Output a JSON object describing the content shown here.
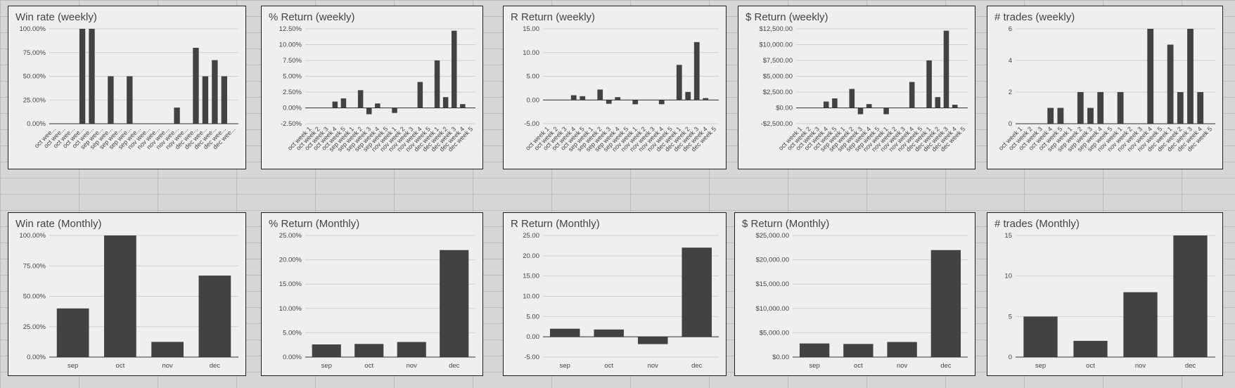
{
  "chart_data": [
    {
      "type": "bar",
      "title": "Win rate (weekly)",
      "color": "#424242",
      "grid": true,
      "categories": [
        "oct wee...",
        "oct wee...",
        "oct wee...",
        "oct wee...",
        "oct wee...",
        "sep wee...",
        "sep wee...",
        "sep wee...",
        "sep wee...",
        "sep wee...",
        "nov wee...",
        "nov wee...",
        "nov wee...",
        "nov wee...",
        "nov wee...",
        "dec wee...",
        "dec wee...",
        "dec wee...",
        "dec wee...",
        "dec wee..."
      ],
      "values": [
        0,
        0,
        0,
        100,
        100,
        0,
        50,
        0,
        50,
        0,
        0,
        0,
        0,
        17,
        0,
        80,
        50,
        67,
        50,
        0
      ],
      "ylim": [
        0,
        100
      ],
      "yticks": [
        {
          "value": 0,
          "label": "0.00%"
        },
        {
          "value": 25,
          "label": "25.00%"
        },
        {
          "value": 50,
          "label": "50.00%"
        },
        {
          "value": 75,
          "label": "75.00%"
        },
        {
          "value": 100,
          "label": "100.00%"
        }
      ]
    },
    {
      "type": "bar",
      "title": "% Return (weekly)",
      "color": "#424242",
      "grid": true,
      "categories": [
        "oct week 1",
        "oct week 2",
        "oct week 3",
        "oct week 4",
        "oct week 5",
        "sep week 1",
        "sep week 2",
        "sep week 3",
        "sep week 4",
        "sep week 5",
        "nov week 1",
        "nov week 2",
        "nov week 3",
        "nov week 4",
        "nov week 5",
        "dec week 1",
        "dec week 2",
        "dec week 3",
        "dec week 4",
        "dec week 5"
      ],
      "values": [
        0,
        0,
        0,
        1.0,
        1.5,
        0,
        2.8,
        -1.0,
        0.7,
        0,
        -0.8,
        0,
        0,
        4.1,
        0,
        7.5,
        1.7,
        12.2,
        0.6,
        0
      ],
      "ylim": [
        -2.5,
        12.5
      ],
      "yticks": [
        {
          "value": -2.5,
          "label": "-2.50%"
        },
        {
          "value": 0,
          "label": "0.00%"
        },
        {
          "value": 2.5,
          "label": "2.50%"
        },
        {
          "value": 5,
          "label": "5.00%"
        },
        {
          "value": 7.5,
          "label": "7.50%"
        },
        {
          "value": 10,
          "label": "10.00%"
        },
        {
          "value": 12.5,
          "label": "12.50%"
        }
      ]
    },
    {
      "type": "bar",
      "title": "R Return (weekly)",
      "color": "#424242",
      "grid": true,
      "categories": [
        "oct week 1",
        "oct week 2",
        "oct week 3",
        "oct week 4",
        "oct week 5",
        "sep week 1",
        "sep week 2",
        "sep week 3",
        "sep week 4",
        "sep week 5",
        "nov week 1",
        "nov week 2",
        "nov week 3",
        "nov week 4",
        "nov week 5",
        "dec week 1",
        "dec week 2",
        "dec week 3",
        "dec week 4",
        "dec week 5"
      ],
      "values": [
        0,
        0,
        0,
        1.0,
        0.8,
        0,
        2.2,
        -0.8,
        0.6,
        0,
        -0.9,
        0,
        0,
        -0.9,
        0,
        7.4,
        1.7,
        12.2,
        0.4,
        0
      ],
      "ylim": [
        -5,
        15
      ],
      "yticks": [
        {
          "value": -5,
          "label": "-5.00"
        },
        {
          "value": 0,
          "label": "0.00"
        },
        {
          "value": 5,
          "label": "5.00"
        },
        {
          "value": 10,
          "label": "10.00"
        },
        {
          "value": 15,
          "label": "15.00"
        }
      ]
    },
    {
      "type": "bar",
      "title": "$ Return (weekly)",
      "color": "#424242",
      "grid": true,
      "categories": [
        "oct week 1",
        "oct week 2",
        "oct week 3",
        "oct week 4",
        "oct week 5",
        "sep week 1",
        "sep week 2",
        "sep week 3",
        "sep week 4",
        "sep week 5",
        "nov week 1",
        "nov week 2",
        "nov week 3",
        "nov week 4",
        "nov week 5",
        "dec week 1",
        "dec week 2",
        "dec week 3",
        "dec week 4",
        "dec week 5"
      ],
      "values": [
        0,
        0,
        0,
        1000,
        1500,
        0,
        3000,
        -1000,
        600,
        0,
        -1000,
        0,
        0,
        4100,
        0,
        7500,
        1700,
        12200,
        500,
        0
      ],
      "ylim": [
        -2500,
        12500
      ],
      "yticks": [
        {
          "value": -2500,
          "label": "-$2,500.00"
        },
        {
          "value": 0,
          "label": "$0.00"
        },
        {
          "value": 2500,
          "label": "$2,500.00"
        },
        {
          "value": 5000,
          "label": "$5,000.00"
        },
        {
          "value": 7500,
          "label": "$7,500.00"
        },
        {
          "value": 10000,
          "label": "$10,000.00"
        },
        {
          "value": 12500,
          "label": "$12,500.00"
        }
      ]
    },
    {
      "type": "bar",
      "title": "# trades (weekly)",
      "color": "#424242",
      "grid": true,
      "categories": [
        "oct week 1",
        "oct week 2",
        "oct week 3",
        "oct week 4",
        "oct week 5",
        "sep week 1",
        "sep week 2",
        "sep week 3",
        "sep week 4",
        "sep week 5",
        "nov week 1",
        "nov week 2",
        "nov week 3",
        "nov week 4",
        "nov week 5",
        "dec week 1",
        "dec week 2",
        "dec week 3",
        "dec week 4",
        "dec week 5"
      ],
      "values": [
        0,
        0,
        0,
        1,
        1,
        0,
        2,
        1,
        2,
        0,
        2,
        0,
        0,
        6,
        0,
        5,
        2,
        6,
        2,
        0
      ],
      "ylim": [
        0,
        6
      ],
      "yticks": [
        0,
        2,
        4,
        6
      ]
    },
    {
      "type": "bar",
      "title": "Win rate (Monthly)",
      "color": "#424242",
      "grid": true,
      "categories": [
        "sep",
        "oct",
        "nov",
        "dec"
      ],
      "values": [
        40,
        100,
        12.5,
        67
      ],
      "ylim": [
        0,
        100
      ],
      "yticks": [
        {
          "value": 0,
          "label": "0.00%"
        },
        {
          "value": 25,
          "label": "25.00%"
        },
        {
          "value": 50,
          "label": "50.00%"
        },
        {
          "value": 75,
          "label": "75.00%"
        },
        {
          "value": 100,
          "label": "100.00%"
        }
      ]
    },
    {
      "type": "bar",
      "title": "% Return (Monthly)",
      "color": "#424242",
      "grid": true,
      "categories": [
        "sep",
        "oct",
        "nov",
        "dec"
      ],
      "values": [
        2.6,
        2.7,
        3.1,
        22.0
      ],
      "ylim": [
        0,
        25
      ],
      "yticks": [
        {
          "value": 0,
          "label": "0.00%"
        },
        {
          "value": 5,
          "label": "5.00%"
        },
        {
          "value": 10,
          "label": "10.00%"
        },
        {
          "value": 15,
          "label": "15.00%"
        },
        {
          "value": 20,
          "label": "20.00%"
        },
        {
          "value": 25,
          "label": "25.00%"
        }
      ]
    },
    {
      "type": "bar",
      "title": "R Return (Monthly)",
      "color": "#424242",
      "grid": true,
      "categories": [
        "sep",
        "oct",
        "nov",
        "dec"
      ],
      "values": [
        2.0,
        1.8,
        -1.8,
        22.0
      ],
      "ylim": [
        -5,
        25
      ],
      "yticks": [
        {
          "value": -5,
          "label": "-5.00"
        },
        {
          "value": 0,
          "label": "0.00"
        },
        {
          "value": 5,
          "label": "5.00"
        },
        {
          "value": 10,
          "label": "10.00"
        },
        {
          "value": 15,
          "label": "15.00"
        },
        {
          "value": 20,
          "label": "20.00"
        },
        {
          "value": 25,
          "label": "25.00"
        }
      ]
    },
    {
      "type": "bar",
      "title": "$ Return (Monthly)",
      "color": "#424242",
      "grid": true,
      "categories": [
        "sep",
        "oct",
        "nov",
        "dec"
      ],
      "values": [
        2800,
        2700,
        3100,
        22000
      ],
      "ylim": [
        0,
        25000
      ],
      "yticks": [
        {
          "value": 0,
          "label": "$0.00"
        },
        {
          "value": 5000,
          "label": "$5,000.00"
        },
        {
          "value": 10000,
          "label": "$10,000.00"
        },
        {
          "value": 15000,
          "label": "$15,000.00"
        },
        {
          "value": 20000,
          "label": "$20,000.00"
        },
        {
          "value": 25000,
          "label": "$25,000.00"
        }
      ]
    },
    {
      "type": "bar",
      "title": "# trades (Monthly)",
      "color": "#424242",
      "grid": true,
      "categories": [
        "sep",
        "oct",
        "nov",
        "dec"
      ],
      "values": [
        5,
        2,
        8,
        15
      ],
      "ylim": [
        0,
        15
      ],
      "yticks": [
        0,
        5,
        10,
        15
      ]
    }
  ]
}
